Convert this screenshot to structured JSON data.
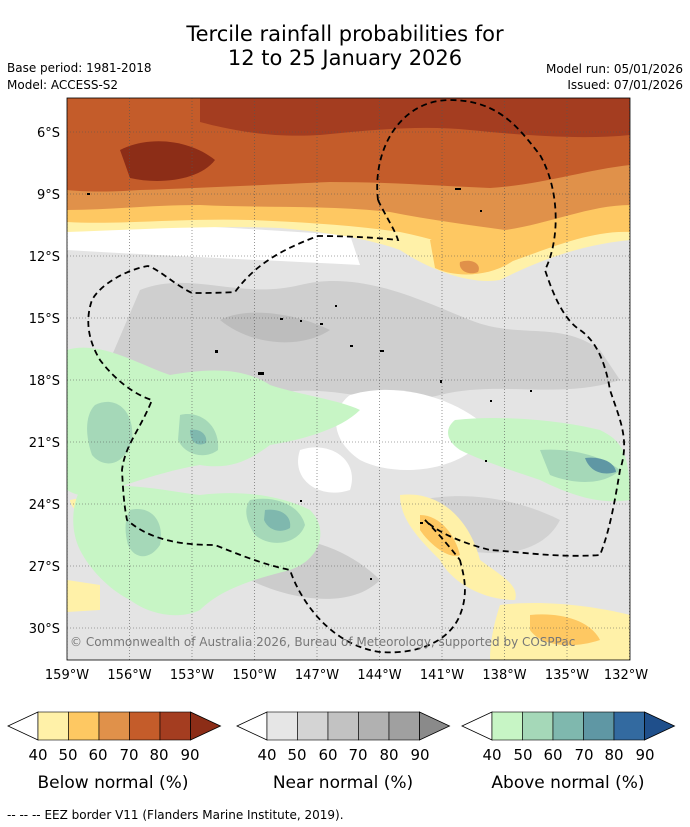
{
  "header": {
    "title_line1": "Tercile rainfall probabilities for",
    "title_line2": "12 to 25 January 2026",
    "base_period": "Base period: 1981-2018",
    "model": "Model: ACCESS-S2",
    "model_run": "Model run: 05/01/2026",
    "issued": "Issued: 07/01/2026"
  },
  "map": {
    "lat_labels": [
      "6°S",
      "9°S",
      "12°S",
      "15°S",
      "18°S",
      "21°S",
      "24°S",
      "27°S",
      "30°S"
    ],
    "lon_labels": [
      "159°W",
      "156°W",
      "153°W",
      "150°W",
      "147°W",
      "144°W",
      "141°W",
      "138°W",
      "135°W",
      "132°W"
    ],
    "copyright": "© Commonwealth of Australia 2026, Bureau of Meteorology, supported by COSPPac"
  },
  "legends": [
    {
      "title": "Below normal (%)",
      "ticks": [
        "40",
        "50",
        "60",
        "70",
        "80",
        "90"
      ],
      "colors": [
        "#fff1a8",
        "#fec862",
        "#e0914a",
        "#c45c2a",
        "#a43d20",
        "#8c2d17"
      ],
      "under_color": "#ffffff"
    },
    {
      "title": "Near normal (%)",
      "ticks": [
        "40",
        "50",
        "60",
        "70",
        "80",
        "90"
      ],
      "colors": [
        "#e6e6e6",
        "#d4d4d4",
        "#c2c2c2",
        "#b1b1b1",
        "#a0a0a0",
        "#8a8a8a"
      ],
      "under_color": "#ffffff"
    },
    {
      "title": "Above normal (%)",
      "ticks": [
        "40",
        "50",
        "60",
        "70",
        "80",
        "90"
      ],
      "colors": [
        "#c7f5c5",
        "#a5d8b8",
        "#7fb8ae",
        "#5f97a4",
        "#336aa0",
        "#1f4f8b"
      ],
      "under_color": "#ffffff"
    }
  ],
  "footer": {
    "line_sample": "--  --  --",
    "note": "EEZ border V11 (Flanders Marine Institute, 2019)."
  }
}
